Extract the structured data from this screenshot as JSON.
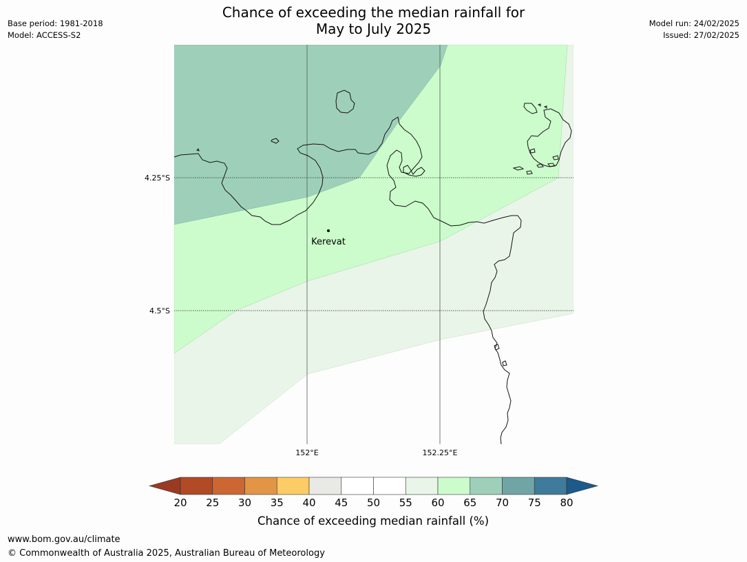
{
  "header": {
    "title_line1": "Chance of exceeding the median rainfall for",
    "title_line2": "May to July 2025",
    "base_period": "Base period: 1981-2018",
    "model": "Model: ACCESS-S2",
    "model_run": "Model run: 24/02/2025",
    "issued": "Issued: 27/02/2025"
  },
  "map": {
    "lat_labels": [
      "4.25°S",
      "4.5°S"
    ],
    "lon_labels": [
      "152°E",
      "152.25°E"
    ],
    "place": "Kerevat",
    "zones": [
      {
        "range": "65-70",
        "color": "#9ed0b9"
      },
      {
        "range": "60-65",
        "color": "#ccfccc"
      },
      {
        "range": "55-60",
        "color": "#e9f5e9"
      },
      {
        "range": "50-55",
        "color": "#fdfdfd"
      }
    ]
  },
  "colorbar": {
    "label": "Chance of exceeding median rainfall (%)",
    "ticks": [
      "20",
      "25",
      "30",
      "35",
      "40",
      "45",
      "50",
      "55",
      "60",
      "65",
      "70",
      "75",
      "80"
    ],
    "colors": [
      "#9a3a23",
      "#b14a25",
      "#cc6633",
      "#e29545",
      "#fecc66",
      "#e9e9e5",
      "#ffffff",
      "#ffffff",
      "#e9f5e9",
      "#ccfccc",
      "#9ed0b9",
      "#6fa5a5",
      "#3f7b9a",
      "#1b5a8a"
    ]
  },
  "footer": {
    "url": "www.bom.gov.au/climate",
    "copyright": "© Commonwealth of Australia 2025, Australian Bureau of Meteorology"
  }
}
